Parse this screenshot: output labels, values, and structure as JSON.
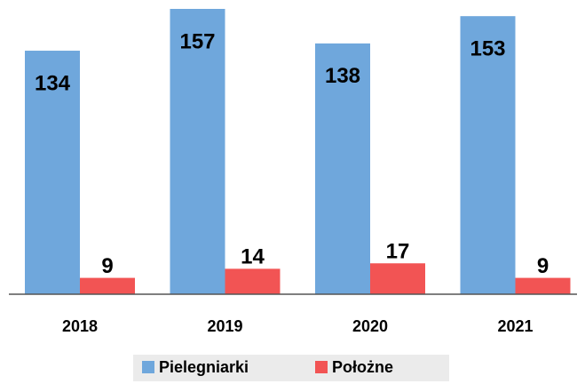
{
  "chart_data": {
    "type": "bar",
    "categories": [
      "2018",
      "2019",
      "2020",
      "2021"
    ],
    "series": [
      {
        "name": "Pielegniarki",
        "color": "#6fa7dc",
        "values": [
          134,
          157,
          138,
          153
        ]
      },
      {
        "name": "Położne",
        "color": "#f25454",
        "values": [
          9,
          14,
          17,
          9
        ]
      }
    ]
  }
}
